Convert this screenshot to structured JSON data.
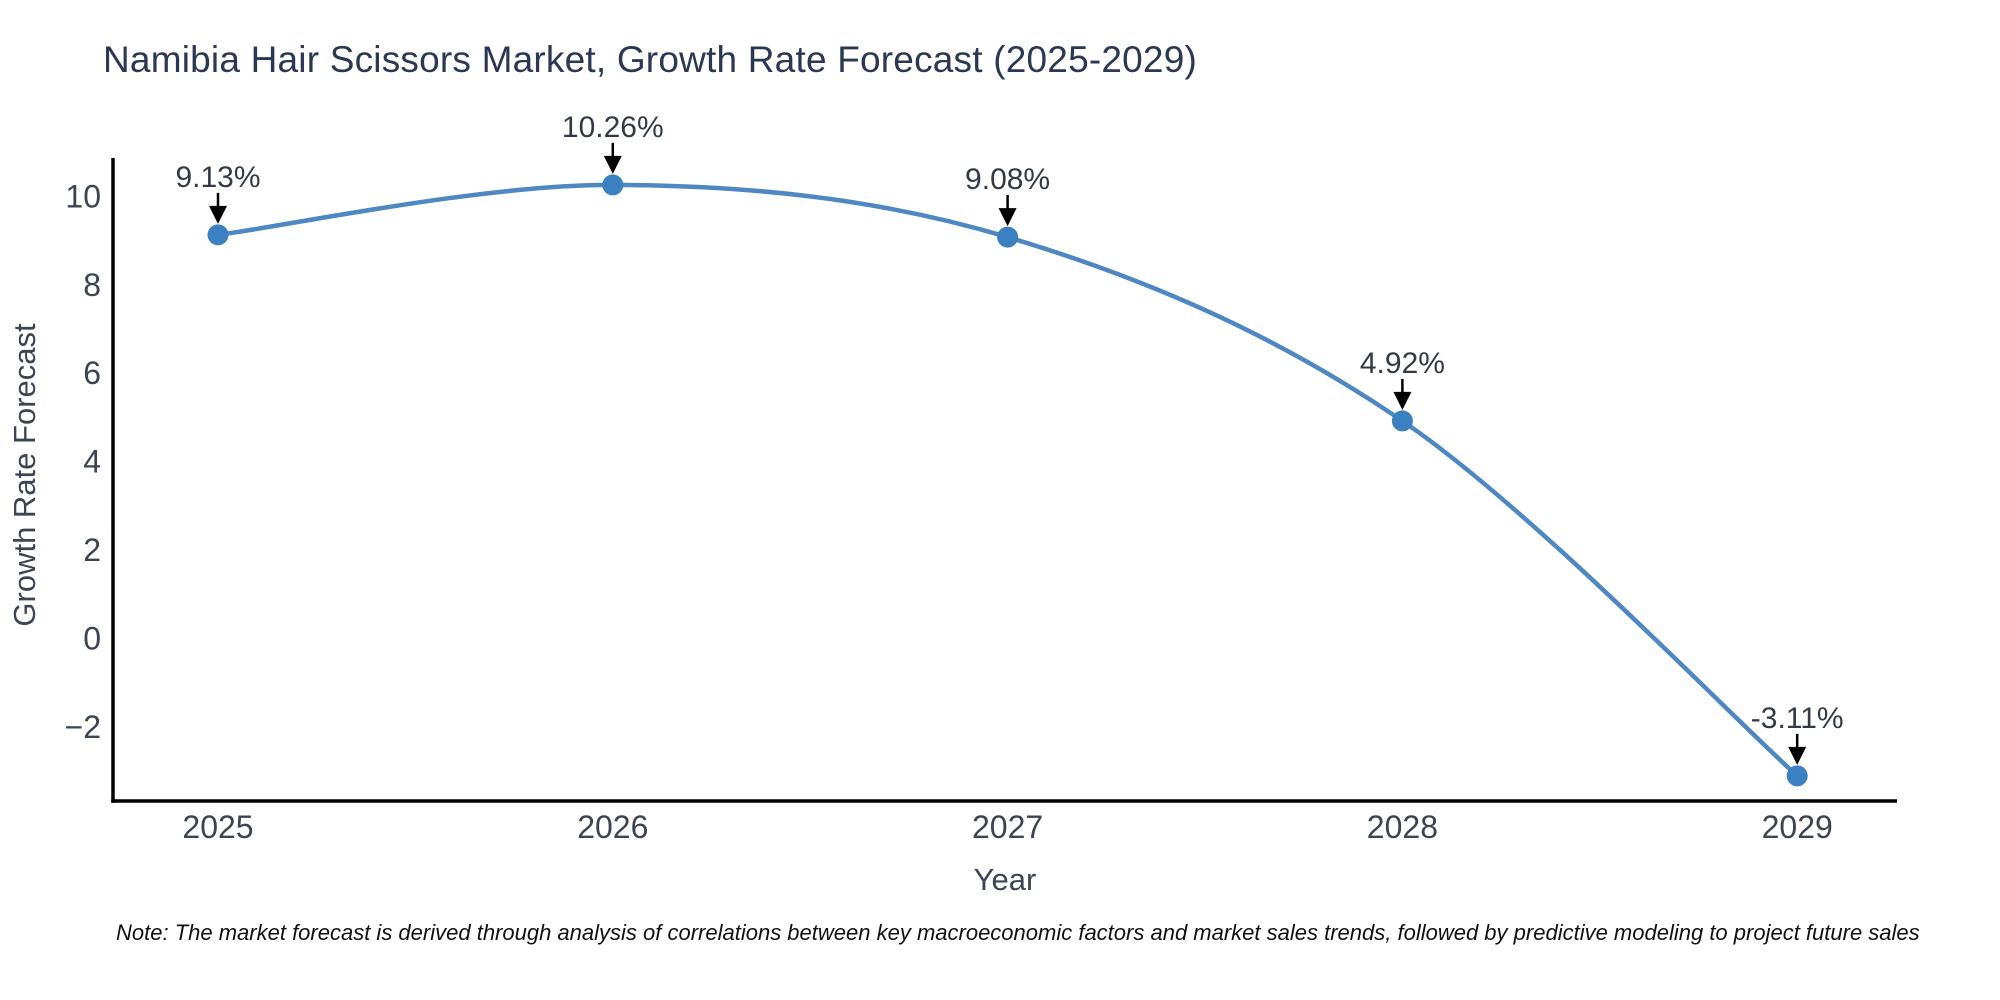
{
  "page": {
    "background": "#ffffff"
  },
  "title": "Namibia Hair Scissors Market, Growth Rate Forecast (2025-2029)",
  "note": "Note: The market forecast is derived through analysis of correlations between key macroeconomic factors and market sales trends, followed by predictive modeling to project future sales",
  "chart_data": {
    "type": "line",
    "title": "Namibia Hair Scissors Market, Growth Rate Forecast (2025-2029)",
    "xlabel": "Year",
    "ylabel": "Growth Rate Forecast",
    "categories": [
      "2025",
      "2026",
      "2027",
      "2028",
      "2029"
    ],
    "series": [
      {
        "name": "Growth Rate Forecast",
        "values": [
          9.13,
          10.26,
          9.08,
          4.92,
          -3.11
        ]
      }
    ],
    "point_labels": [
      "9.13%",
      "10.26%",
      "9.08%",
      "4.92%",
      "-3.11%"
    ],
    "yticks": [
      "10",
      "8",
      "6",
      "4",
      "2",
      "0",
      "−2"
    ],
    "ytick_values": [
      10,
      8,
      6,
      4,
      2,
      0,
      -2
    ],
    "ylim": [
      -3.65,
      10.85
    ],
    "grid": false,
    "legend": "none",
    "marker": "circle",
    "line_shape": "smooth",
    "annotation_arrows": true,
    "colors": {
      "line": "#4e87c1",
      "marker": "#3b80c0",
      "spine": "#000000",
      "arrow": "#000000",
      "title_text": "#2c3754",
      "tick_text": "#3d4451",
      "annotation_text": "#333a45",
      "note_text": "#111111"
    }
  }
}
